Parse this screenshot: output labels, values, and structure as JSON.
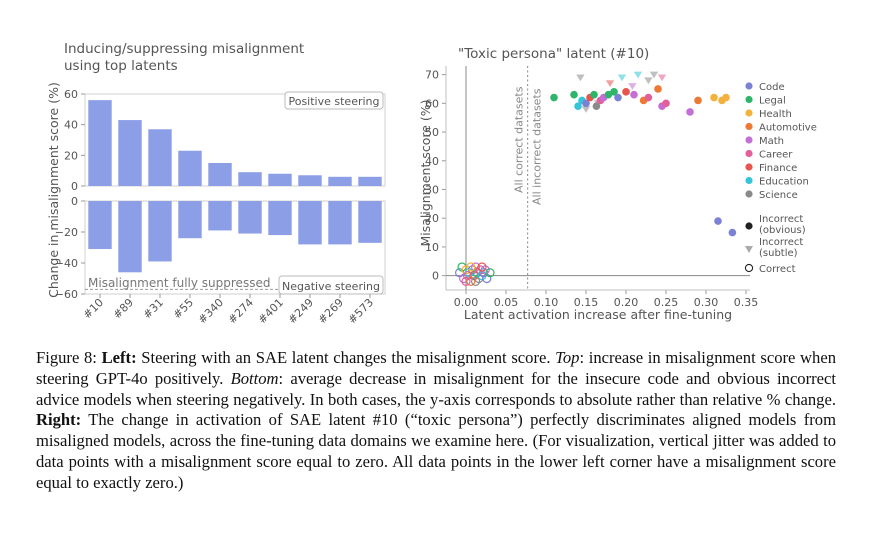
{
  "chart_data": [
    {
      "type": "bar",
      "title_line1": "Inducing/suppressing misalignment",
      "title_line2": "using top latents",
      "ylabel": "Change in misalignment score (%)",
      "categories": [
        "#10",
        "#89",
        "#31",
        "#55",
        "#340",
        "#274",
        "#401",
        "#249",
        "#269",
        "#573"
      ],
      "top_panel": {
        "legend": "Positive steering",
        "values": [
          56,
          43,
          37,
          23,
          15,
          9,
          8,
          7,
          6,
          6
        ],
        "ylim": [
          0,
          60
        ],
        "yticks": [
          "60",
          "40",
          "20",
          "0"
        ]
      },
      "bottom_panel": {
        "legend": "Negative steering",
        "annotation": "Misalignment fully suppressed",
        "values": [
          -31,
          -46,
          -39,
          -24,
          -19,
          -21,
          -22,
          -28,
          -28,
          -27
        ],
        "ylim": [
          -60,
          0
        ],
        "yticks": [
          "0",
          "−20",
          "−40",
          "−60"
        ]
      },
      "bar_color": "#8c9ee6"
    },
    {
      "type": "scatter",
      "title": "\"Toxic persona\" latent (#10)",
      "xlabel": "Latent activation increase after fine-tuning",
      "ylabel": "Misalignment score (%)",
      "xlim": [
        -0.025,
        0.355
      ],
      "ylim": [
        -5,
        73
      ],
      "xticks": [
        "0.00",
        "0.05",
        "0.10",
        "0.15",
        "0.20",
        "0.25",
        "0.30",
        "0.35"
      ],
      "yticks": [
        "0",
        "10",
        "20",
        "30",
        "40",
        "50",
        "60",
        "70"
      ],
      "vline_labels": [
        "All correct datasets",
        "All incorrect datasets"
      ],
      "legend_domains": [
        {
          "label": "Code",
          "color": "#7b82d6"
        },
        {
          "label": "Legal",
          "color": "#2fb56a"
        },
        {
          "label": "Health",
          "color": "#f2b23d"
        },
        {
          "label": "Automotive",
          "color": "#ec7a35"
        },
        {
          "label": "Math",
          "color": "#c46fd6"
        },
        {
          "label": "Career",
          "color": "#e25f9a"
        },
        {
          "label": "Finance",
          "color": "#e8544e"
        },
        {
          "label": "Education",
          "color": "#34c6d8"
        },
        {
          "label": "Science",
          "color": "#8a8a8a"
        }
      ],
      "legend_types": [
        {
          "label1": "Incorrect",
          "label2": "(obvious)",
          "marker": "filled-circle"
        },
        {
          "label1": "Incorrect",
          "label2": "(subtle)",
          "marker": "triangle"
        },
        {
          "label1": "Correct",
          "label2": "",
          "marker": "open-circle"
        }
      ],
      "points_obvious": [
        {
          "x": 0.11,
          "y": 62,
          "domain": "Legal"
        },
        {
          "x": 0.135,
          "y": 63,
          "domain": "Legal"
        },
        {
          "x": 0.14,
          "y": 59,
          "domain": "Education"
        },
        {
          "x": 0.145,
          "y": 61,
          "domain": "Education"
        },
        {
          "x": 0.15,
          "y": 60,
          "domain": "Code"
        },
        {
          "x": 0.155,
          "y": 62,
          "domain": "Finance"
        },
        {
          "x": 0.16,
          "y": 63,
          "domain": "Legal"
        },
        {
          "x": 0.163,
          "y": 59,
          "domain": "Science"
        },
        {
          "x": 0.168,
          "y": 61,
          "domain": "Career"
        },
        {
          "x": 0.172,
          "y": 62,
          "domain": "Math"
        },
        {
          "x": 0.178,
          "y": 63,
          "domain": "Legal"
        },
        {
          "x": 0.185,
          "y": 64,
          "domain": "Legal"
        },
        {
          "x": 0.19,
          "y": 62,
          "domain": "Code"
        },
        {
          "x": 0.2,
          "y": 64,
          "domain": "Finance"
        },
        {
          "x": 0.21,
          "y": 63,
          "domain": "Math"
        },
        {
          "x": 0.222,
          "y": 61,
          "domain": "Automotive"
        },
        {
          "x": 0.228,
          "y": 62,
          "domain": "Career"
        },
        {
          "x": 0.24,
          "y": 65,
          "domain": "Automotive"
        },
        {
          "x": 0.245,
          "y": 59,
          "domain": "Math"
        },
        {
          "x": 0.25,
          "y": 60,
          "domain": "Career"
        },
        {
          "x": 0.28,
          "y": 57,
          "domain": "Math"
        },
        {
          "x": 0.29,
          "y": 61,
          "domain": "Automotive"
        },
        {
          "x": 0.31,
          "y": 62,
          "domain": "Health"
        },
        {
          "x": 0.32,
          "y": 61,
          "domain": "Health"
        },
        {
          "x": 0.325,
          "y": 62,
          "domain": "Health"
        },
        {
          "x": 0.315,
          "y": 19,
          "domain": "Code"
        },
        {
          "x": 0.333,
          "y": 15,
          "domain": "Code"
        }
      ],
      "points_subtle": [
        {
          "x": 0.143,
          "y": 69,
          "domain": "Science"
        },
        {
          "x": 0.18,
          "y": 67,
          "domain": "Finance"
        },
        {
          "x": 0.195,
          "y": 69,
          "domain": "Education"
        },
        {
          "x": 0.208,
          "y": 66,
          "domain": "Math"
        },
        {
          "x": 0.215,
          "y": 70,
          "domain": "Education"
        },
        {
          "x": 0.228,
          "y": 68,
          "domain": "Science"
        },
        {
          "x": 0.235,
          "y": 70,
          "domain": "Science"
        },
        {
          "x": 0.245,
          "y": 69,
          "domain": "Career"
        },
        {
          "x": 0.165,
          "y": 60,
          "domain": "Science"
        },
        {
          "x": 0.15,
          "y": 58,
          "domain": "Science"
        }
      ],
      "points_correct": [
        {
          "x": -0.008,
          "y": 1,
          "domain": "Code"
        },
        {
          "x": -0.005,
          "y": 3,
          "domain": "Legal"
        },
        {
          "x": -0.003,
          "y": -1,
          "domain": "Math"
        },
        {
          "x": 0.0,
          "y": 2,
          "domain": "Health"
        },
        {
          "x": 0.002,
          "y": 0,
          "domain": "Career"
        },
        {
          "x": 0.004,
          "y": 1,
          "domain": "Education"
        },
        {
          "x": 0.006,
          "y": -2,
          "domain": "Automotive"
        },
        {
          "x": 0.008,
          "y": 2,
          "domain": "Code"
        },
        {
          "x": 0.01,
          "y": 0,
          "domain": "Finance"
        },
        {
          "x": 0.012,
          "y": 3,
          "domain": "Math"
        },
        {
          "x": 0.014,
          "y": 1,
          "domain": "Legal"
        },
        {
          "x": 0.016,
          "y": -1,
          "domain": "Science"
        },
        {
          "x": 0.018,
          "y": 2,
          "domain": "Career"
        },
        {
          "x": 0.02,
          "y": 0,
          "domain": "Education"
        },
        {
          "x": 0.022,
          "y": 1,
          "domain": "Code"
        },
        {
          "x": 0.024,
          "y": 2,
          "domain": "Math"
        },
        {
          "x": 0.026,
          "y": -1,
          "domain": "Code"
        },
        {
          "x": 0.03,
          "y": 1,
          "domain": "Legal"
        },
        {
          "x": 0.0,
          "y": -2,
          "domain": "Career"
        },
        {
          "x": 0.006,
          "y": 3,
          "domain": "Health"
        },
        {
          "x": 0.012,
          "y": -2,
          "domain": "Science"
        },
        {
          "x": 0.02,
          "y": 3,
          "domain": "Finance"
        }
      ]
    }
  ],
  "caption": {
    "p1": "Figure 8: ",
    "left_label": "Left:",
    "p2": " Steering with an SAE latent changes the misalignment score. ",
    "top_label": "Top",
    "p3": ": increase in misalignment score when steering GPT-4o positively. ",
    "bottom_label": "Bottom",
    "p4": ": average decrease in misalignment for the insecure code and obvious incorrect advice models when steering negatively. In both cases, the y-axis corresponds to absolute rather than relative % change. ",
    "right_label": "Right:",
    "p5": " The change in activation of SAE latent #10 (“toxic persona”) perfectly discriminates aligned models from misaligned models, across the fine-tuning data domains we examine here. (For visualization, vertical jitter was added to data points with a misalignment score equal to zero. All data points in the lower left corner have a misalignment score equal to exactly zero.)"
  }
}
